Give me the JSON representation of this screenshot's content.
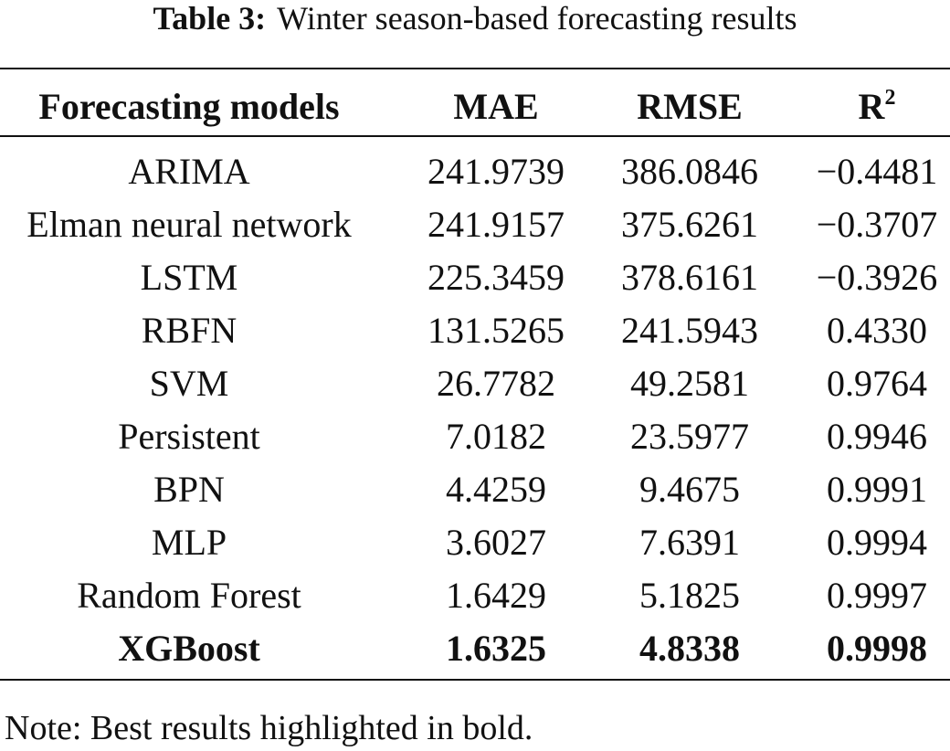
{
  "caption": {
    "label": "Table 3:",
    "text": "Winter season-based forecasting results"
  },
  "table": {
    "header": {
      "cells": [
        "Forecasting models",
        "MAE",
        "RMSE",
        "R"
      ],
      "superscript": "2"
    },
    "rows": [
      [
        "ARIMA",
        "241.9739",
        "386.0846",
        "−0.4481"
      ],
      [
        "Elman neural network",
        "241.9157",
        "375.6261",
        "−0.3707"
      ],
      [
        "LSTM",
        "225.3459",
        "378.6161",
        "−0.3926"
      ],
      [
        "RBFN",
        "131.5265",
        "241.5943",
        "0.4330"
      ],
      [
        "SVM",
        "26.7782",
        "49.2581",
        "0.9764"
      ],
      [
        "Persistent",
        "7.0182",
        "23.5977",
        "0.9946"
      ],
      [
        "BPN",
        "4.4259",
        "9.4675",
        "0.9991"
      ],
      [
        "MLP",
        "3.6027",
        "7.6391",
        "0.9994"
      ],
      [
        "Random Forest",
        "1.6429",
        "5.1825",
        "0.9997"
      ],
      [
        "XGBoost",
        "1.6325",
        "4.8338",
        "0.9998"
      ]
    ]
  },
  "note": "Note: Best results highlighted in bold."
}
